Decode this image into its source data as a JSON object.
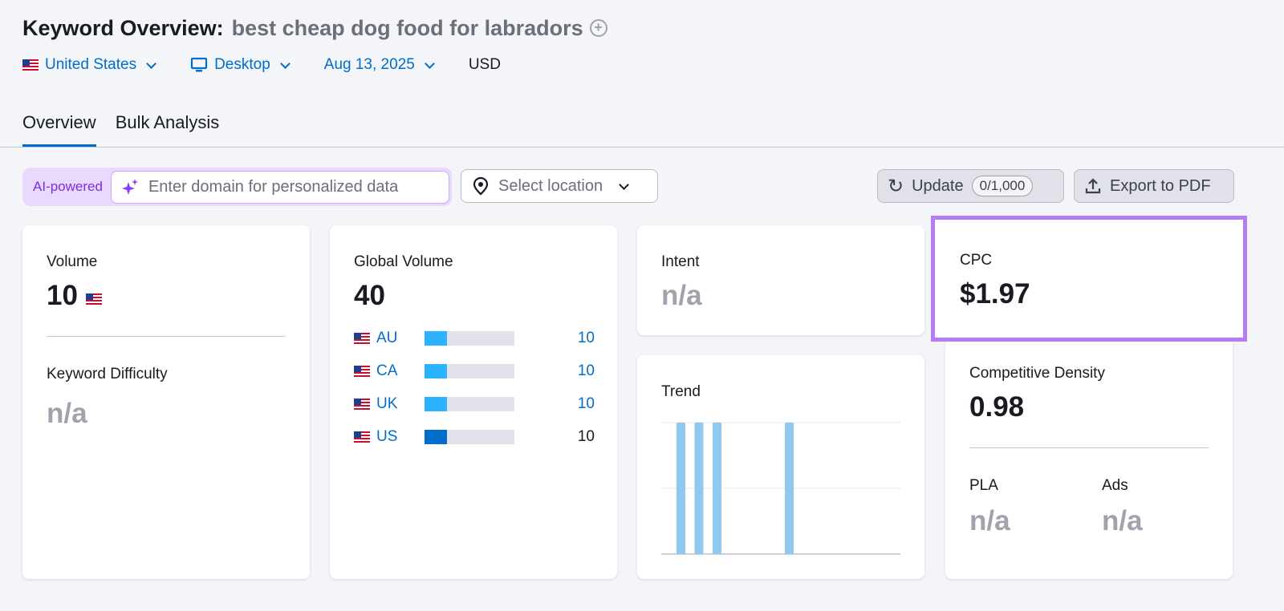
{
  "header": {
    "title": "Keyword Overview:",
    "keyword": "best cheap dog food for labradors"
  },
  "filters": {
    "country": "United States",
    "device": "Desktop",
    "date": "Aug 13, 2025",
    "currency": "USD"
  },
  "tabs": [
    {
      "label": "Overview",
      "active": true
    },
    {
      "label": "Bulk Analysis",
      "active": false
    }
  ],
  "toolbar": {
    "ai_label": "AI-powered",
    "domain_placeholder": "Enter domain for personalized data",
    "location_placeholder": "Select location",
    "update_label": "Update",
    "update_count": "0/1,000",
    "export_label": "Export to PDF"
  },
  "volume": {
    "label": "Volume",
    "value": "10",
    "kd_label": "Keyword Difficulty",
    "kd_value": "n/a"
  },
  "global": {
    "label": "Global Volume",
    "value": "40",
    "rows": [
      {
        "code": "AU",
        "value": "10",
        "fill": 0.25,
        "color": "#2bb3ff",
        "link": true
      },
      {
        "code": "CA",
        "value": "10",
        "fill": 0.25,
        "color": "#2bb3ff",
        "link": true
      },
      {
        "code": "UK",
        "value": "10",
        "fill": 0.25,
        "color": "#2bb3ff",
        "link": true
      },
      {
        "code": "US",
        "value": "10",
        "fill": 0.25,
        "color": "#006dca",
        "link": false
      }
    ]
  },
  "intent": {
    "label": "Intent",
    "value": "n/a"
  },
  "trend": {
    "label": "Trend",
    "values": [
      1,
      1,
      1,
      0,
      0,
      0,
      1,
      0,
      0,
      0,
      0,
      0
    ],
    "color": "#91c8f0"
  },
  "cpc": {
    "label": "CPC",
    "value": "$1.97",
    "highlight": "#b57cf5"
  },
  "density": {
    "label": "Competitive Density",
    "value": "0.98",
    "pla_label": "PLA",
    "pla_value": "n/a",
    "ads_label": "Ads",
    "ads_value": "n/a"
  }
}
